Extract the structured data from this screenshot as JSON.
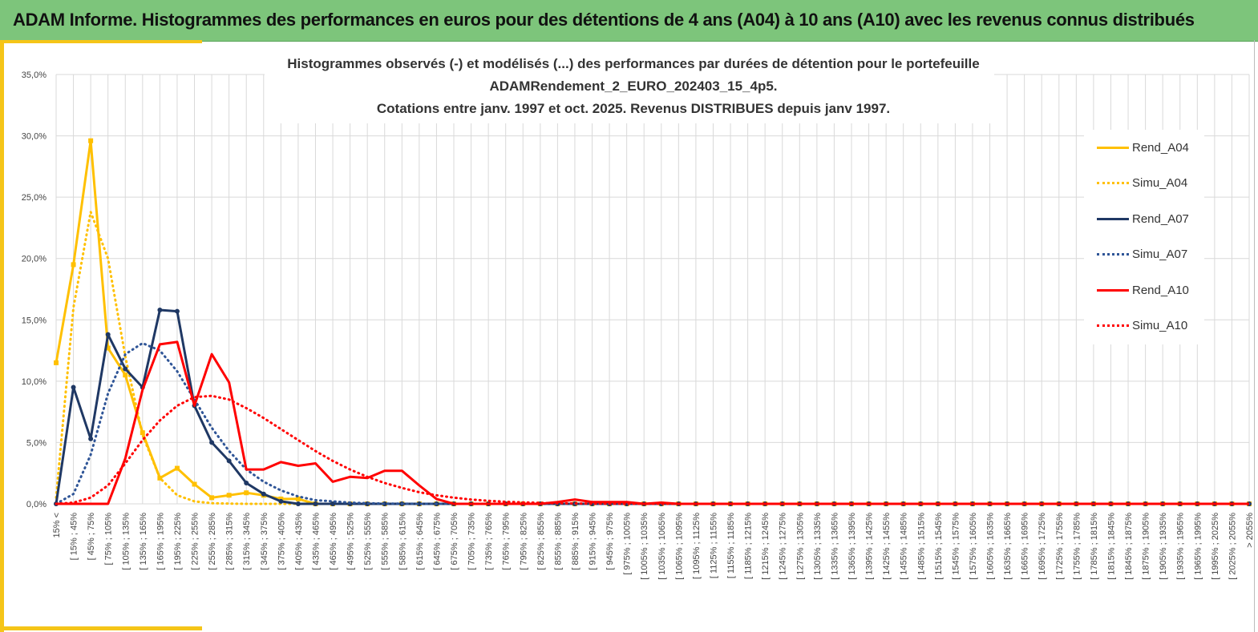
{
  "header": {
    "title": "ADAM Informe. Histogrammes des performances en euros pour des détentions de 4 ans (A04) à 10 ans (A10) avec les revenus connus distribués"
  },
  "colors": {
    "banner": "#7dc57b",
    "frame": "#f5c518",
    "A04": "#ffc000",
    "A07": "#1f3864",
    "A10": "#ff0000",
    "A07_simu": "#2f5597"
  },
  "chart_data": {
    "type": "line",
    "title_lines": [
      "Histogrammes observés (-) et modélisés (...) des performances  par durées de détention pour le portefeuille",
      "ADAMRendement_2_EURO_202403_15_4p5.",
      "Cotations entre janv. 1997 et oct. 2025. Revenus DISTRIBUES depuis janv 1997."
    ],
    "ylim": [
      0,
      0.35
    ],
    "yticks": [
      "0,0%",
      "5,0%",
      "10,0%",
      "15,0%",
      "20,0%",
      "25,0%",
      "30,0%",
      "35,0%"
    ],
    "grid": true,
    "legend_position": "right",
    "categories": [
      "15% <",
      "[ 15% ; 45%",
      "[ 45% ; 75%",
      "[ 75% ; 105%",
      "[ 105% ; 135%",
      "[ 135% ; 165%",
      "[ 165% ; 195%",
      "[ 195% ; 225%",
      "[ 225% ; 255%",
      "[ 255% ; 285%",
      "[ 285% ; 315%",
      "[ 315% ; 345%",
      "[ 345% ; 375%",
      "[ 375% ; 405%",
      "[ 405% ; 435%",
      "[ 435% ; 465%",
      "[ 465% ; 495%",
      "[ 495% ; 525%",
      "[ 525% ; 555%",
      "[ 555% ; 585%",
      "[ 585% ; 615%",
      "[ 615% ; 645%",
      "[ 645% ; 675%",
      "[ 675% ; 705%",
      "[ 705% ; 735%",
      "[ 735% ; 765%",
      "[ 765% ; 795%",
      "[ 795% ; 825%",
      "[ 825% ; 855%",
      "[ 855% ; 885%",
      "[ 885% ; 915%",
      "[ 915% ; 945%",
      "[ 945% ; 975%",
      "[ 975% ; 1005%",
      "[ 1005% ; 1035%",
      "[ 1035% ; 1065%",
      "[ 1065% ; 1095%",
      "[ 1095% ; 1125%",
      "[ 1125% ; 1155%",
      "[ 1155% ; 1185%",
      "[ 1185% ; 1215%",
      "[ 1215% ; 1245%",
      "[ 1245% ; 1275%",
      "[ 1275% ; 1305%",
      "[ 1305% ; 1335%",
      "[ 1335% ; 1365%",
      "[ 1365% ; 1395%",
      "[ 1395% ; 1425%",
      "[ 1425% ; 1455%",
      "[ 1455% ; 1485%",
      "[ 1485% ; 1515%",
      "[ 1515% ; 1545%",
      "[ 1545% ; 1575%",
      "[ 1575% ; 1605%",
      "[ 1605% ; 1635%",
      "[ 1635% ; 1665%",
      "[ 1665% ; 1695%",
      "[ 1695% ; 1725%",
      "[ 1725% ; 1755%",
      "[ 1755% ; 1785%",
      "[ 1785% ; 1815%",
      "[ 1815% ; 1845%",
      "[ 1845% ; 1875%",
      "[ 1875% ; 1905%",
      "[ 1905% ; 1935%",
      "[ 1935% ; 1965%",
      "[ 1965% ; 1995%",
      "[ 1995% ; 2025%",
      "[ 2025% ; 2055%",
      "> 2055%"
    ],
    "series": [
      {
        "name": "Rend_A04",
        "color": "#ffc000",
        "dash": false,
        "marker": "square",
        "values": [
          0.115,
          0.195,
          0.296,
          0.127,
          0.105,
          0.058,
          0.021,
          0.029,
          0.016,
          0.005,
          0.007,
          0.009,
          0.007,
          0.004,
          0.004,
          0.0,
          0.0,
          0.0,
          0.0,
          0.0,
          0.0,
          0.0,
          0.0,
          0.0,
          0.0,
          0.0,
          0.0,
          0.0,
          0.0,
          0.0,
          0.0,
          0.0,
          0.0,
          0.0,
          0.0,
          0.0,
          0.0,
          0.0,
          0.0,
          0.0,
          0.0,
          0.0,
          0.0,
          0.0,
          0.0,
          0.0,
          0.0,
          0.0,
          0.0,
          0.0,
          0.0,
          0.0,
          0.0,
          0.0,
          0.0,
          0.0,
          0.0,
          0.0,
          0.0,
          0.0,
          0.0,
          0.0,
          0.0,
          0.0,
          0.0,
          0.0,
          0.0,
          0.0,
          0.0,
          0.0
        ]
      },
      {
        "name": "Simu_A04",
        "color": "#ffc000",
        "dash": true,
        "marker": "none",
        "values": [
          0.005,
          0.16,
          0.238,
          0.2,
          0.12,
          0.056,
          0.021,
          0.007,
          0.002,
          0.0005,
          0.0002,
          0.0,
          0.0,
          0.0,
          0.0,
          0.0,
          0.0,
          0.0,
          0.0,
          0.0,
          0.0,
          0.0,
          0.0,
          0.0,
          0.0,
          0.0,
          0.0,
          0.0,
          0.0,
          0.0,
          0.0,
          0.0,
          0.0,
          0.0,
          0.0,
          0.0,
          0.0,
          0.0,
          0.0,
          0.0,
          0.0,
          0.0,
          0.0,
          0.0,
          0.0,
          0.0,
          0.0,
          0.0,
          0.0,
          0.0,
          0.0,
          0.0,
          0.0,
          0.0,
          0.0,
          0.0,
          0.0,
          0.0,
          0.0,
          0.0,
          0.0,
          0.0,
          0.0,
          0.0,
          0.0,
          0.0,
          0.0,
          0.0,
          0.0,
          0.0
        ]
      },
      {
        "name": "Rend_A07",
        "color": "#1f3864",
        "dash": false,
        "marker": "circle",
        "values": [
          0.0,
          0.095,
          0.053,
          0.138,
          0.11,
          0.095,
          0.158,
          0.157,
          0.08,
          0.05,
          0.035,
          0.017,
          0.008,
          0.002,
          0.0,
          0.0,
          0.0,
          0.0,
          0.0,
          0.0,
          0.0,
          0.0,
          0.0,
          0.0,
          0.0,
          0.0,
          0.0,
          0.0,
          0.0,
          0.0,
          0.0,
          0.0,
          0.0,
          0.0,
          0.0,
          0.0,
          0.0,
          0.0,
          0.0,
          0.0,
          0.0,
          0.0,
          0.0,
          0.0,
          0.0,
          0.0,
          0.0,
          0.0,
          0.0,
          0.0,
          0.0,
          0.0,
          0.0,
          0.0,
          0.0,
          0.0,
          0.0,
          0.0,
          0.0,
          0.0,
          0.0,
          0.0,
          0.0,
          0.0,
          0.0,
          0.0,
          0.0,
          0.0,
          0.0,
          0.0
        ]
      },
      {
        "name": "Simu_A07",
        "color": "#2f5597",
        "dash": true,
        "marker": "none",
        "values": [
          0.0,
          0.008,
          0.04,
          0.09,
          0.122,
          0.131,
          0.125,
          0.108,
          0.085,
          0.062,
          0.043,
          0.028,
          0.018,
          0.011,
          0.006,
          0.003,
          0.002,
          0.001,
          0.0005,
          0.0002,
          0.0001,
          0.0,
          0.0,
          0.0,
          0.0,
          0.0,
          0.0,
          0.0,
          0.0,
          0.0,
          0.0,
          0.0,
          0.0,
          0.0,
          0.0,
          0.0,
          0.0,
          0.0,
          0.0,
          0.0,
          0.0,
          0.0,
          0.0,
          0.0,
          0.0,
          0.0,
          0.0,
          0.0,
          0.0,
          0.0,
          0.0,
          0.0,
          0.0,
          0.0,
          0.0,
          0.0,
          0.0,
          0.0,
          0.0,
          0.0,
          0.0,
          0.0,
          0.0,
          0.0,
          0.0,
          0.0,
          0.0,
          0.0,
          0.0,
          0.0
        ]
      },
      {
        "name": "Rend_A10",
        "color": "#ff0000",
        "dash": false,
        "marker": "none",
        "values": [
          0.0,
          0.0,
          0.0,
          0.0,
          0.037,
          0.093,
          0.13,
          0.132,
          0.08,
          0.122,
          0.099,
          0.028,
          0.028,
          0.034,
          0.031,
          0.033,
          0.018,
          0.022,
          0.021,
          0.027,
          0.027,
          0.015,
          0.004,
          0.0,
          0.0,
          0.0,
          0.0,
          0.0,
          0.0,
          0.0015,
          0.0035,
          0.0015,
          0.0015,
          0.0015,
          0.0,
          0.001,
          0.0,
          0.0,
          0.0,
          0.0,
          0.0,
          0.0,
          0.0,
          0.0,
          0.0,
          0.0,
          0.0,
          0.0,
          0.0,
          0.0,
          0.0,
          0.0,
          0.0,
          0.0,
          0.0,
          0.0,
          0.0,
          0.0,
          0.0,
          0.0,
          0.0,
          0.0,
          0.0,
          0.0,
          0.0,
          0.0,
          0.0,
          0.0,
          0.0,
          0.0
        ]
      },
      {
        "name": "Simu_A10",
        "color": "#ff0000",
        "dash": true,
        "marker": "none",
        "values": [
          0.0,
          0.001,
          0.005,
          0.015,
          0.033,
          0.052,
          0.068,
          0.08,
          0.087,
          0.088,
          0.085,
          0.078,
          0.07,
          0.061,
          0.052,
          0.043,
          0.035,
          0.028,
          0.022,
          0.017,
          0.013,
          0.0095,
          0.007,
          0.005,
          0.0035,
          0.0025,
          0.0017,
          0.0012,
          0.0008,
          0.0005,
          0.0003,
          0.0002,
          0.0001,
          0.0,
          0.0,
          0.0,
          0.0,
          0.0,
          0.0,
          0.0,
          0.0,
          0.0,
          0.0,
          0.0,
          0.0,
          0.0,
          0.0,
          0.0,
          0.0,
          0.0,
          0.0,
          0.0,
          0.0,
          0.0,
          0.0,
          0.0,
          0.0,
          0.0,
          0.0,
          0.0,
          0.0,
          0.0,
          0.0,
          0.0,
          0.0,
          0.0,
          0.0,
          0.0,
          0.0,
          0.0
        ]
      }
    ]
  }
}
